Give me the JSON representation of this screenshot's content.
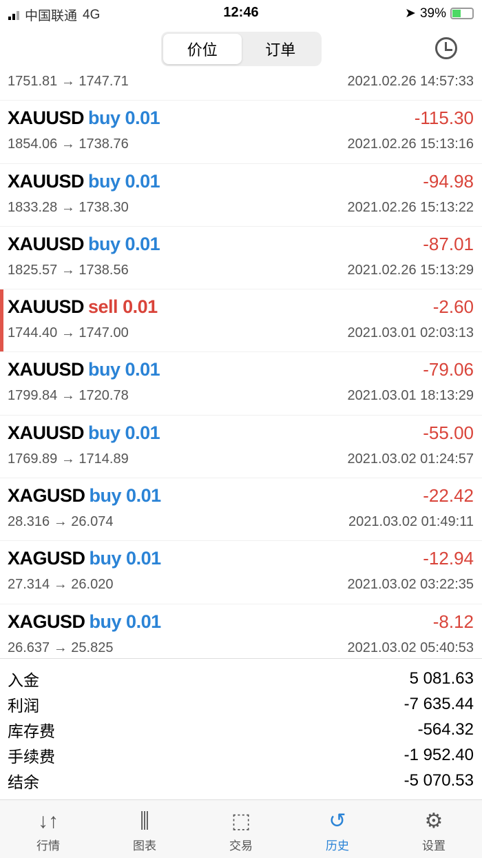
{
  "status": {
    "carrier": "中国联通",
    "network": "4G",
    "time": "12:46",
    "battery": "39%"
  },
  "header": {
    "segments": [
      "价位",
      "订单"
    ],
    "active": 0
  },
  "trades": [
    {
      "symbol": "XAUUSD",
      "side": "buy",
      "volume": "0.01",
      "prices": "1751.81 → 1747.71",
      "profit": "",
      "time": "2021.02.26 14:57:33"
    },
    {
      "symbol": "XAUUSD",
      "side": "buy",
      "volume": "0.01",
      "prices": "1854.06 → 1738.76",
      "profit": "-115.30",
      "time": "2021.02.26 15:13:16"
    },
    {
      "symbol": "XAUUSD",
      "side": "buy",
      "volume": "0.01",
      "prices": "1833.28 → 1738.30",
      "profit": "-94.98",
      "time": "2021.02.26 15:13:22"
    },
    {
      "symbol": "XAUUSD",
      "side": "buy",
      "volume": "0.01",
      "prices": "1825.57 → 1738.56",
      "profit": "-87.01",
      "time": "2021.02.26 15:13:29"
    },
    {
      "symbol": "XAUUSD",
      "side": "sell",
      "volume": "0.01",
      "prices": "1744.40 → 1747.00",
      "profit": "-2.60",
      "time": "2021.03.01 02:03:13"
    },
    {
      "symbol": "XAUUSD",
      "side": "buy",
      "volume": "0.01",
      "prices": "1799.84 → 1720.78",
      "profit": "-79.06",
      "time": "2021.03.01 18:13:29"
    },
    {
      "symbol": "XAUUSD",
      "side": "buy",
      "volume": "0.01",
      "prices": "1769.89 → 1714.89",
      "profit": "-55.00",
      "time": "2021.03.02 01:24:57"
    },
    {
      "symbol": "XAGUSD",
      "side": "buy",
      "volume": "0.01",
      "prices": "28.316 → 26.074",
      "profit": "-22.42",
      "time": "2021.03.02 01:49:11"
    },
    {
      "symbol": "XAGUSD",
      "side": "buy",
      "volume": "0.01",
      "prices": "27.314 → 26.020",
      "profit": "-12.94",
      "time": "2021.03.02 03:22:35"
    },
    {
      "symbol": "XAGUSD",
      "side": "buy",
      "volume": "0.01",
      "prices": "26.637 → 25.825",
      "profit": "-8.12",
      "time": "2021.03.02 05:40:53"
    }
  ],
  "summary": [
    {
      "label": "入金",
      "value": "5 081.63"
    },
    {
      "label": "利润",
      "value": "-7 635.44"
    },
    {
      "label": "库存费",
      "value": "-564.32"
    },
    {
      "label": "手续费",
      "value": "-1 952.40"
    },
    {
      "label": "结余",
      "value": "-5 070.53"
    }
  ],
  "tabs": [
    {
      "label": "行情",
      "icon": "arrows-updown-icon",
      "glyph": "↓↑"
    },
    {
      "label": "图表",
      "icon": "candlestick-icon",
      "glyph": "⫼"
    },
    {
      "label": "交易",
      "icon": "trade-chart-icon",
      "glyph": "⬚"
    },
    {
      "label": "历史",
      "icon": "history-icon",
      "glyph": "↺"
    },
    {
      "label": "设置",
      "icon": "gear-icon",
      "glyph": "⚙"
    }
  ],
  "activeTab": 3,
  "colors": {
    "buy": "#2a83d6",
    "sell": "#d9443a",
    "profit": "#d9443a",
    "active": "#2a83d6"
  }
}
